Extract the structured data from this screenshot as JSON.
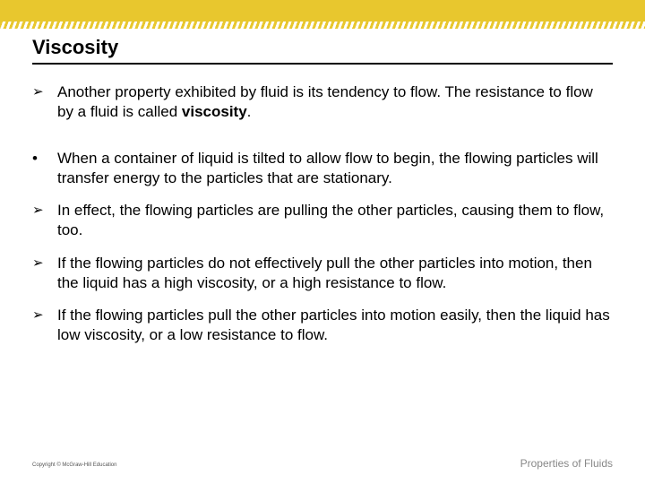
{
  "colors": {
    "accent": "#e8c72e",
    "text": "#000000",
    "footer_text": "#888888",
    "copyright_text": "#555555",
    "background": "#ffffff"
  },
  "title": "Viscosity",
  "bullets": [
    {
      "marker": "➢",
      "text_pre": "Another property exhibited by fluid is its tendency to flow.  The resistance to flow by a fluid is called ",
      "bold": "viscosity",
      "text_post": ".",
      "gap_after": true
    },
    {
      "marker": "•",
      "text_pre": "When a container of liquid is tilted to allow flow to begin, the flowing particles will transfer energy to the particles that are stationary.",
      "bold": "",
      "text_post": "",
      "gap_after": false
    },
    {
      "marker": "➢",
      "text_pre": "In effect, the flowing particles are pulling the other particles, causing them to flow, too.",
      "bold": "",
      "text_post": "",
      "gap_after": false
    },
    {
      "marker": "➢",
      "text_pre": "If the flowing particles do not effectively pull the other particles into motion, then the liquid has a high viscosity, or a high resistance to flow.",
      "bold": "",
      "text_post": "",
      "gap_after": false
    },
    {
      "marker": "➢",
      "text_pre": "If the flowing particles pull the other particles into motion easily, then the liquid has low viscosity, or a low resistance to flow.",
      "bold": "",
      "text_post": "",
      "gap_after": false
    }
  ],
  "footer": {
    "left": "Copyright © McGraw-Hill Education",
    "right": "Properties of Fluids"
  }
}
